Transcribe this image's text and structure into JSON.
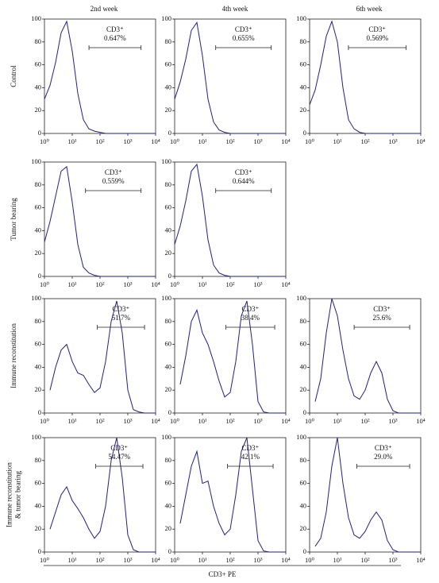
{
  "column_titles": [
    "2nd week",
    "4th week",
    "6th week"
  ],
  "row_titles": [
    [
      "Control"
    ],
    [
      "Tumor bearing"
    ],
    [
      "Immune reconstitution"
    ],
    [
      "Immune reconstitution",
      "& tumor bearing"
    ]
  ],
  "x_axis_label": "CD3+ PE",
  "chart_data": [
    {
      "type": "line",
      "color": "#1f1f8f",
      "log_x": true,
      "xlim": [
        1,
        10000
      ],
      "ylim": [
        0,
        100
      ],
      "xticks": [
        {
          "value": 1,
          "label": "10⁰"
        },
        {
          "value": 10,
          "label": "10¹"
        },
        {
          "value": 100,
          "label": "10²"
        },
        {
          "value": 1000,
          "label": "10³"
        },
        {
          "value": 10000,
          "label": "10⁴"
        }
      ],
      "yticks": [
        0,
        20,
        40,
        60,
        80,
        100
      ],
      "x": [
        1,
        1.58,
        2.51,
        3.98,
        6.31,
        10,
        15.8,
        25.1,
        39.8,
        63.1,
        100,
        158,
        251,
        398,
        631,
        1000,
        1585,
        2512,
        3981,
        6310,
        10000
      ],
      "values": [
        30,
        42,
        62,
        88,
        98,
        72,
        35,
        12,
        4,
        2,
        1,
        0,
        0,
        0,
        0,
        0,
        0,
        0,
        0,
        0,
        0
      ],
      "gate": [
        40,
        3000
      ],
      "gate_label": [
        "CD3⁺",
        "0.647%"
      ]
    },
    {
      "type": "line",
      "color": "#1f1f8f",
      "log_x": true,
      "xlim": [
        1,
        10000
      ],
      "ylim": [
        0,
        100
      ],
      "xticks": [
        {
          "value": 1,
          "label": "10⁰"
        },
        {
          "value": 10,
          "label": "10¹"
        },
        {
          "value": 100,
          "label": "10²"
        },
        {
          "value": 1000,
          "label": "10³"
        },
        {
          "value": 10000,
          "label": "10⁴"
        }
      ],
      "yticks": [
        0,
        20,
        40,
        60,
        80,
        100
      ],
      "x": [
        1,
        1.58,
        2.51,
        3.98,
        6.31,
        10,
        15.8,
        25.1,
        39.8,
        63.1,
        100,
        158,
        251,
        398,
        631,
        1000,
        1585,
        2512,
        3981,
        6310,
        10000
      ],
      "values": [
        30,
        45,
        65,
        90,
        97,
        68,
        30,
        10,
        3,
        1,
        0,
        0,
        0,
        0,
        0,
        0,
        0,
        0,
        0,
        0,
        0
      ],
      "gate": [
        30,
        3000
      ],
      "gate_label": [
        "CD3⁺",
        "0.655%"
      ]
    },
    {
      "type": "line",
      "color": "#1f1f8f",
      "log_x": true,
      "xlim": [
        1,
        10000
      ],
      "ylim": [
        0,
        100
      ],
      "xticks": [
        {
          "value": 1,
          "label": "10⁰"
        },
        {
          "value": 10,
          "label": "10¹"
        },
        {
          "value": 100,
          "label": "10²"
        },
        {
          "value": 1000,
          "label": "10³"
        },
        {
          "value": 10000,
          "label": "10⁴"
        }
      ],
      "yticks": [
        0,
        20,
        40,
        60,
        80,
        100
      ],
      "x": [
        1,
        1.58,
        2.51,
        3.98,
        6.31,
        10,
        15.8,
        25.1,
        39.8,
        63.1,
        100,
        158,
        251,
        398,
        631,
        1000,
        1585,
        2512,
        3981,
        6310,
        10000
      ],
      "values": [
        25,
        38,
        60,
        85,
        98,
        80,
        40,
        12,
        4,
        1,
        0,
        0,
        0,
        0,
        0,
        0,
        0,
        0,
        0,
        0,
        0
      ],
      "gate": [
        25,
        3000
      ],
      "gate_label": [
        "CD3⁺",
        "0.569%"
      ]
    },
    {
      "type": "line",
      "color": "#1f1f8f",
      "log_x": true,
      "xlim": [
        1,
        10000
      ],
      "ylim": [
        0,
        100
      ],
      "xticks": [
        {
          "value": 1,
          "label": "10⁰"
        },
        {
          "value": 10,
          "label": "10¹"
        },
        {
          "value": 100,
          "label": "10²"
        },
        {
          "value": 1000,
          "label": "10³"
        },
        {
          "value": 10000,
          "label": "10⁴"
        }
      ],
      "yticks": [
        0,
        20,
        40,
        60,
        80,
        100
      ],
      "x": [
        1,
        1.58,
        2.51,
        3.98,
        6.31,
        10,
        15.8,
        25.1,
        39.8,
        63.1,
        100,
        158,
        251,
        398,
        631,
        1000,
        1585,
        2512,
        3981,
        6310,
        10000
      ],
      "values": [
        30,
        48,
        70,
        92,
        96,
        65,
        28,
        8,
        3,
        1,
        0,
        0,
        0,
        0,
        0,
        0,
        0,
        0,
        0,
        0,
        0
      ],
      "gate": [
        30,
        3000
      ],
      "gate_label": [
        "CD3⁺",
        "0.559%"
      ]
    },
    {
      "type": "line",
      "color": "#1f1f8f",
      "log_x": true,
      "xlim": [
        1,
        10000
      ],
      "ylim": [
        0,
        100
      ],
      "xticks": [
        {
          "value": 1,
          "label": "10⁰"
        },
        {
          "value": 10,
          "label": "10¹"
        },
        {
          "value": 100,
          "label": "10²"
        },
        {
          "value": 1000,
          "label": "10³"
        },
        {
          "value": 10000,
          "label": "10⁴"
        }
      ],
      "yticks": [
        0,
        20,
        40,
        60,
        80,
        100
      ],
      "x": [
        1,
        1.58,
        2.51,
        3.98,
        6.31,
        10,
        15.8,
        25.1,
        39.8,
        63.1,
        100,
        158,
        251,
        398,
        631,
        1000,
        1585,
        2512,
        3981,
        6310,
        10000
      ],
      "values": [
        28,
        44,
        66,
        92,
        98,
        70,
        32,
        10,
        3,
        1,
        0,
        0,
        0,
        0,
        0,
        0,
        0,
        0,
        0,
        0,
        0
      ],
      "gate": [
        30,
        3000
      ],
      "gate_label": [
        "CD3⁺",
        "0.644%"
      ]
    },
    {
      "type": "line",
      "color": "#1f1f8f",
      "log_x": true,
      "xlim": [
        1,
        10000
      ],
      "ylim": [
        0,
        100
      ],
      "xticks": [
        {
          "value": 1,
          "label": "10⁰"
        },
        {
          "value": 10,
          "label": "10¹"
        },
        {
          "value": 100,
          "label": "10²"
        },
        {
          "value": 1000,
          "label": "10³"
        },
        {
          "value": 10000,
          "label": "10⁴"
        }
      ],
      "yticks": [
        0,
        20,
        40,
        60,
        80,
        100
      ],
      "x": [
        1,
        1.58,
        2.51,
        3.98,
        6.31,
        10,
        15.8,
        25.1,
        39.8,
        63.1,
        100,
        158,
        251,
        398,
        631,
        1000,
        1585,
        2512,
        3981,
        6310,
        10000
      ],
      "values": [
        null,
        20,
        40,
        55,
        60,
        45,
        35,
        33,
        25,
        18,
        22,
        45,
        80,
        98,
        70,
        20,
        3,
        1,
        0,
        0,
        0
      ],
      "gate": [
        80,
        4000
      ],
      "gate_label": [
        "CD3⁺",
        "51.7%"
      ]
    },
    {
      "type": "line",
      "color": "#1f1f8f",
      "log_x": true,
      "xlim": [
        1,
        10000
      ],
      "ylim": [
        0,
        100
      ],
      "xticks": [
        {
          "value": 1,
          "label": "10⁰"
        },
        {
          "value": 10,
          "label": "10¹"
        },
        {
          "value": 100,
          "label": "10²"
        },
        {
          "value": 1000,
          "label": "10³"
        },
        {
          "value": 10000,
          "label": "10⁴"
        }
      ],
      "yticks": [
        0,
        20,
        40,
        60,
        80,
        100
      ],
      "x": [
        1,
        1.58,
        2.51,
        3.98,
        6.31,
        10,
        15.8,
        25.1,
        39.8,
        63.1,
        100,
        158,
        251,
        398,
        631,
        1000,
        1585,
        2512,
        3981,
        6310,
        10000
      ],
      "values": [
        null,
        25,
        50,
        80,
        90,
        70,
        60,
        45,
        28,
        14,
        18,
        45,
        85,
        98,
        60,
        10,
        1,
        0,
        0,
        0,
        0
      ],
      "gate": [
        70,
        4000
      ],
      "gate_label": [
        "CD3⁺",
        "38.4%"
      ]
    },
    {
      "type": "line",
      "color": "#1f1f8f",
      "log_x": true,
      "xlim": [
        1,
        10000
      ],
      "ylim": [
        0,
        100
      ],
      "xticks": [
        {
          "value": 1,
          "label": "10⁰"
        },
        {
          "value": 10,
          "label": "10¹"
        },
        {
          "value": 100,
          "label": "10²"
        },
        {
          "value": 1000,
          "label": "10³"
        },
        {
          "value": 10000,
          "label": "10⁴"
        }
      ],
      "yticks": [
        0,
        20,
        40,
        60,
        80,
        100
      ],
      "x": [
        1,
        1.58,
        2.51,
        3.98,
        6.31,
        10,
        15.8,
        25.1,
        39.8,
        63.1,
        100,
        158,
        251,
        398,
        631,
        1000,
        1585,
        2512,
        3981,
        6310,
        10000
      ],
      "values": [
        null,
        10,
        30,
        70,
        100,
        85,
        55,
        30,
        15,
        12,
        20,
        35,
        45,
        35,
        12,
        2,
        0,
        0,
        0,
        0,
        0
      ],
      "gate": [
        40,
        4000
      ],
      "gate_label": [
        "CD3⁺",
        "25.6%"
      ]
    },
    {
      "type": "line",
      "color": "#1f1f8f",
      "log_x": true,
      "xlim": [
        1,
        10000
      ],
      "ylim": [
        0,
        100
      ],
      "xticks": [
        {
          "value": 1,
          "label": "10⁰"
        },
        {
          "value": 10,
          "label": "10¹"
        },
        {
          "value": 100,
          "label": "10²"
        },
        {
          "value": 1000,
          "label": "10³"
        },
        {
          "value": 10000,
          "label": "10⁴"
        }
      ],
      "yticks": [
        0,
        20,
        40,
        60,
        80,
        100
      ],
      "x": [
        1,
        1.58,
        2.51,
        3.98,
        6.31,
        10,
        15.8,
        25.1,
        39.8,
        63.1,
        100,
        158,
        251,
        398,
        631,
        1000,
        1585,
        2512,
        3981,
        6310,
        10000
      ],
      "values": [
        null,
        20,
        35,
        50,
        57,
        45,
        38,
        30,
        20,
        12,
        18,
        40,
        80,
        100,
        65,
        15,
        2,
        0,
        0,
        0,
        0
      ],
      "gate": [
        70,
        3500
      ],
      "gate_label": [
        "CD3⁺",
        "54.47%"
      ]
    },
    {
      "type": "line",
      "color": "#1f1f8f",
      "log_x": true,
      "xlim": [
        1,
        10000
      ],
      "ylim": [
        0,
        100
      ],
      "xticks": [
        {
          "value": 1,
          "label": "10⁰"
        },
        {
          "value": 10,
          "label": "10¹"
        },
        {
          "value": 100,
          "label": "10²"
        },
        {
          "value": 1000,
          "label": "10³"
        },
        {
          "value": 10000,
          "label": "10⁴"
        }
      ],
      "yticks": [
        0,
        20,
        40,
        60,
        80,
        100
      ],
      "x": [
        1,
        1.58,
        2.51,
        3.98,
        6.31,
        10,
        15.8,
        25.1,
        39.8,
        63.1,
        100,
        158,
        251,
        398,
        631,
        1000,
        1585,
        2512,
        3981,
        6310,
        10000
      ],
      "values": [
        null,
        25,
        50,
        75,
        88,
        60,
        62,
        40,
        25,
        15,
        20,
        50,
        88,
        100,
        55,
        10,
        1,
        0,
        0,
        0,
        0
      ],
      "gate": [
        80,
        3500
      ],
      "gate_label": [
        "CD3⁺",
        "42.1%"
      ]
    },
    {
      "type": "line",
      "color": "#1f1f8f",
      "log_x": true,
      "xlim": [
        1,
        10000
      ],
      "ylim": [
        0,
        100
      ],
      "xticks": [
        {
          "value": 1,
          "label": "10⁰"
        },
        {
          "value": 10,
          "label": "10¹"
        },
        {
          "value": 100,
          "label": "10²"
        },
        {
          "value": 1000,
          "label": "10³"
        },
        {
          "value": 10000,
          "label": "10⁴"
        }
      ],
      "yticks": [
        0,
        20,
        40,
        60,
        80,
        100
      ],
      "x": [
        1,
        1.58,
        2.51,
        3.98,
        6.31,
        10,
        15.8,
        25.1,
        39.8,
        63.1,
        100,
        158,
        251,
        398,
        631,
        1000,
        1585,
        2512,
        3981,
        6310,
        10000
      ],
      "values": [
        null,
        5,
        12,
        35,
        75,
        100,
        60,
        30,
        15,
        12,
        18,
        28,
        35,
        28,
        10,
        2,
        0,
        0,
        0,
        0,
        0
      ],
      "gate": [
        50,
        4000
      ],
      "gate_label": [
        "CD3⁺",
        "29.0%"
      ]
    }
  ]
}
